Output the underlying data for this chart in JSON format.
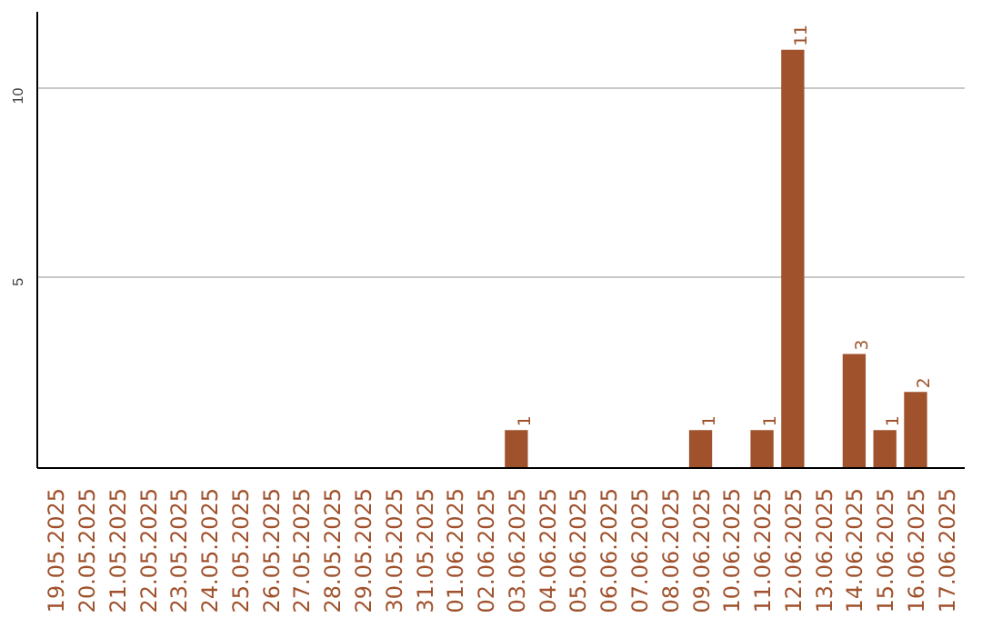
{
  "chart_data": {
    "type": "bar",
    "categories": [
      "19.05.2025",
      "20.05.2025",
      "21.05.2025",
      "22.05.2025",
      "23.05.2025",
      "24.05.2025",
      "25.05.2025",
      "26.05.2025",
      "27.05.2025",
      "28.05.2025",
      "29.05.2025",
      "30.05.2025",
      "31.05.2025",
      "01.06.2025",
      "02.06.2025",
      "03.06.2025",
      "04.06.2025",
      "05.06.2025",
      "06.06.2025",
      "07.06.2025",
      "08.06.2025",
      "09.06.2025",
      "10.06.2025",
      "11.06.2025",
      "12.06.2025",
      "13.06.2025",
      "14.06.2025",
      "15.06.2025",
      "16.06.2025",
      "17.06.2025"
    ],
    "values": [
      0,
      0,
      0,
      0,
      0,
      0,
      0,
      0,
      0,
      0,
      0,
      0,
      0,
      0,
      0,
      1,
      0,
      0,
      0,
      0,
      0,
      1,
      0,
      1,
      11,
      0,
      3,
      1,
      2,
      0
    ],
    "value_labels": [
      null,
      null,
      null,
      null,
      null,
      null,
      null,
      null,
      null,
      null,
      null,
      null,
      null,
      null,
      null,
      "1",
      null,
      null,
      null,
      null,
      null,
      "1",
      null,
      "1",
      "11",
      null,
      "3",
      "1",
      "2",
      null
    ],
    "color": "#a0522d",
    "ylim": [
      0,
      12
    ],
    "yticks": [
      5,
      10
    ],
    "grid": "y"
  }
}
